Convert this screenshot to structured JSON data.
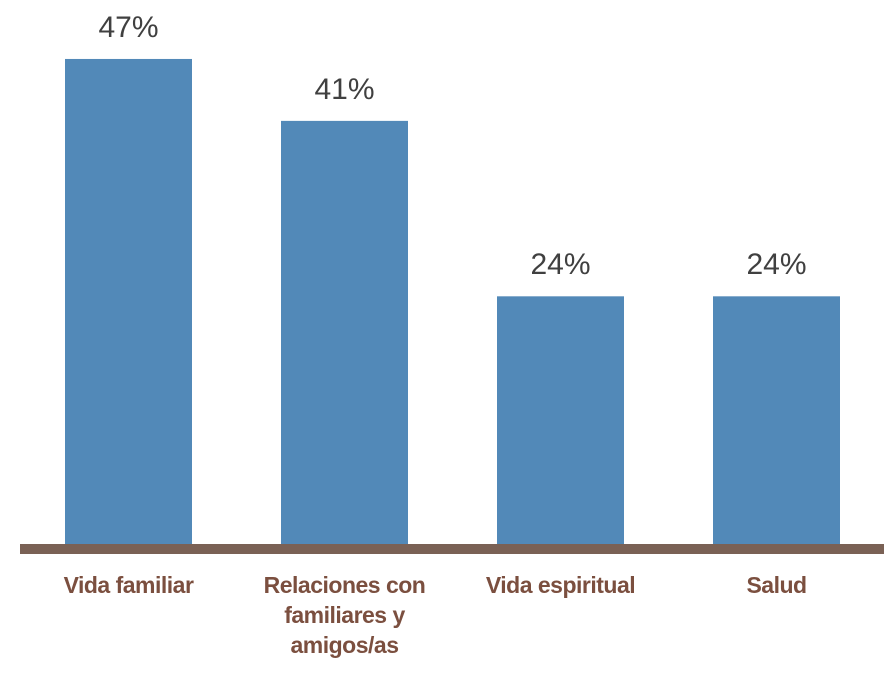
{
  "chart_data": {
    "type": "bar",
    "categories": [
      "Vida familiar",
      "Relaciones con familiares y amigos/as",
      "Vida espiritual",
      "Salud"
    ],
    "values": [
      47,
      41,
      24,
      24
    ],
    "value_labels": [
      "47%",
      "41%",
      "24%",
      "24%"
    ],
    "color": "#5289b8",
    "ylim": [
      0,
      50
    ]
  }
}
